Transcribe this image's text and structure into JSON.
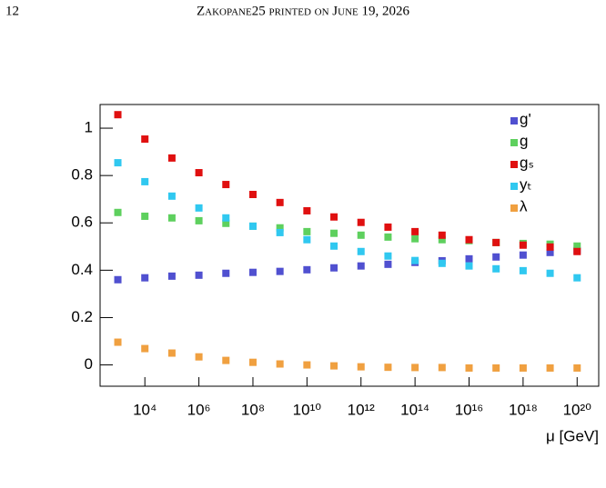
{
  "header": {
    "page_number": "12",
    "running_title": "Zakopane25 printed on June 19, 2026"
  },
  "chart_data": {
    "type": "scatter",
    "x_label": "μ [GeV]",
    "x": [
      1000.0,
      10000.0,
      100000.0,
      1000000.0,
      10000000.0,
      100000000.0,
      1000000000.0,
      10000000000.0,
      100000000000.0,
      1000000000000.0,
      10000000000000.0,
      100000000000000.0,
      1000000000000000.0,
      1e+16,
      1e+17,
      1e+18,
      1e+19,
      1e+20
    ],
    "series": [
      {
        "name": "g'",
        "color": "#5050d0",
        "values": [
          0.36,
          0.368,
          0.375,
          0.379,
          0.387,
          0.391,
          0.395,
          0.402,
          0.41,
          0.418,
          0.425,
          0.433,
          0.44,
          0.448,
          0.456,
          0.464,
          0.475,
          0.483
        ]
      },
      {
        "name": "g",
        "color": "#5ed05e",
        "values": [
          0.644,
          0.628,
          0.621,
          0.609,
          0.598,
          0.586,
          0.579,
          0.563,
          0.556,
          0.548,
          0.54,
          0.533,
          0.529,
          0.525,
          0.517,
          0.513,
          0.51,
          0.502
        ]
      },
      {
        "name": "gₛ",
        "color": "#e01010",
        "values": [
          1.057,
          0.954,
          0.874,
          0.812,
          0.762,
          0.72,
          0.686,
          0.651,
          0.625,
          0.602,
          0.582,
          0.563,
          0.548,
          0.529,
          0.517,
          0.506,
          0.498,
          0.479
        ]
      },
      {
        "name": "yₜ",
        "color": "#30c8f0",
        "values": [
          0.854,
          0.774,
          0.713,
          0.663,
          0.621,
          0.586,
          0.559,
          0.529,
          0.502,
          0.479,
          0.46,
          0.441,
          0.429,
          0.418,
          0.406,
          0.398,
          0.387,
          0.368
        ]
      },
      {
        "name": "λ",
        "color": "#f0a040",
        "values": [
          0.096,
          0.069,
          0.05,
          0.034,
          0.019,
          0.011,
          0.004,
          0.0,
          -0.004,
          -0.008,
          -0.01,
          -0.011,
          -0.011,
          -0.013,
          -0.013,
          -0.013,
          -0.013,
          -0.013
        ]
      }
    ],
    "xscale": "log",
    "xlim": [
      220,
      6.3e+20
    ],
    "xticks": [
      {
        "value": 10000.0,
        "label": "10⁴"
      },
      {
        "value": 1000000.0,
        "label": "10⁶"
      },
      {
        "value": 100000000.0,
        "label": "10⁸"
      },
      {
        "value": 10000000000.0,
        "label": "10¹⁰"
      },
      {
        "value": 1000000000000.0,
        "label": "10¹²"
      },
      {
        "value": 100000000000000.0,
        "label": "10¹⁴"
      },
      {
        "value": 1e+16,
        "label": "10¹⁶"
      },
      {
        "value": 1e+18,
        "label": "10¹⁸"
      },
      {
        "value": 1e+20,
        "label": "10²⁰"
      }
    ],
    "ylim": [
      -0.09,
      1.1
    ],
    "yticks": [
      0,
      0.2,
      0.4,
      0.6,
      0.8,
      1
    ],
    "grid": false,
    "legend": "top-right"
  }
}
